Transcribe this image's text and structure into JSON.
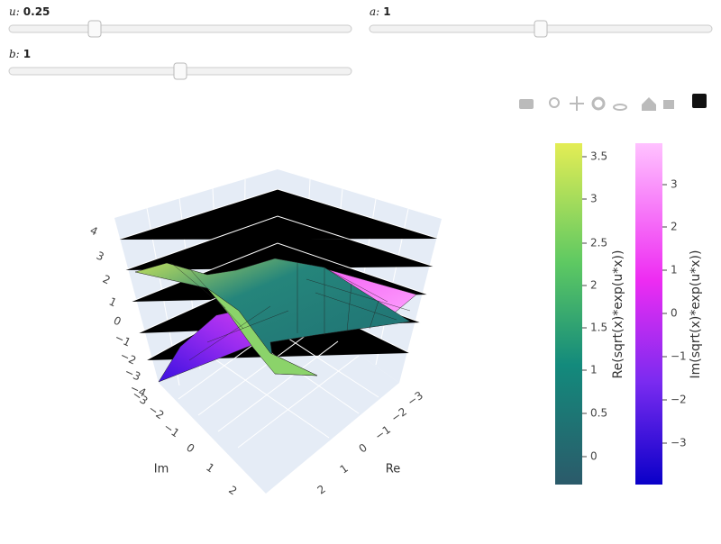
{
  "sliders": [
    {
      "label": "u:",
      "value": "0.25"
    },
    {
      "label": "a:",
      "value": "1"
    },
    {
      "label": "b:",
      "value": "1"
    }
  ],
  "scene": {
    "z_ticks": [
      "4",
      "3",
      "2",
      "1",
      "0",
      "−1",
      "−2",
      "−3",
      "−4"
    ],
    "im_ticks": [
      "−3",
      "−2",
      "−1",
      "0",
      "1",
      "2"
    ],
    "re_ticks": [
      "−3",
      "−2",
      "−1",
      "0",
      "1",
      "2"
    ],
    "x_title": "Re",
    "y_title": "Im"
  },
  "colorbars": [
    {
      "title": "Re(sqrt(x)*exp(u*x))",
      "ticks": [
        "3.5",
        "3",
        "2.5",
        "2",
        "1.5",
        "1",
        "0.5",
        "0"
      ]
    },
    {
      "title": "Im(sqrt(x)*exp(u*x))",
      "ticks": [
        "3",
        "2",
        "1",
        "0",
        "−1",
        "−2",
        "−3"
      ]
    }
  ]
}
